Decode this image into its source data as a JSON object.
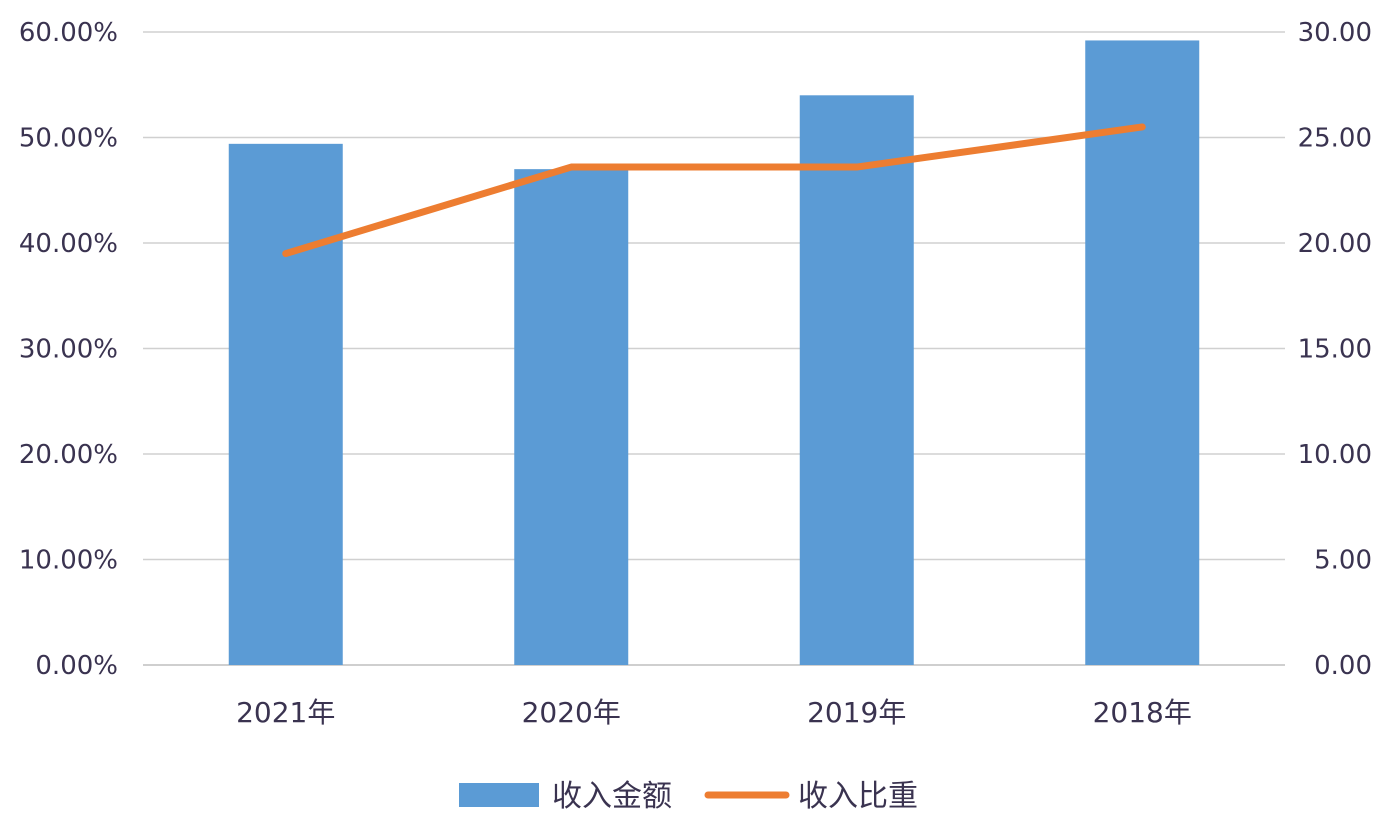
{
  "chart_data": {
    "type": "bar",
    "categories": [
      "2021年",
      "2020年",
      "2019年",
      "2018年"
    ],
    "series": [
      {
        "name": "收入金额",
        "type": "bar",
        "axis": "right",
        "values": [
          24.7,
          23.5,
          27.0,
          29.6
        ],
        "color": "#5b9bd5"
      },
      {
        "name": "收入比重",
        "type": "line",
        "axis": "left",
        "values": [
          39.0,
          47.2,
          47.2,
          51.0
        ],
        "color": "#ed7d31"
      }
    ],
    "y_left": {
      "min": 0,
      "max": 60,
      "ticks": [
        "0.00%",
        "10.00%",
        "20.00%",
        "30.00%",
        "40.00%",
        "50.00%",
        "60.00%"
      ]
    },
    "y_right": {
      "min": 0,
      "max": 30,
      "ticks": [
        "0.00",
        "5.00",
        "10.00",
        "15.00",
        "20.00",
        "25.00",
        "30.00"
      ]
    },
    "grid": true,
    "legend": "bottom-center",
    "title": "",
    "xlabel": "",
    "ylabel": ""
  }
}
